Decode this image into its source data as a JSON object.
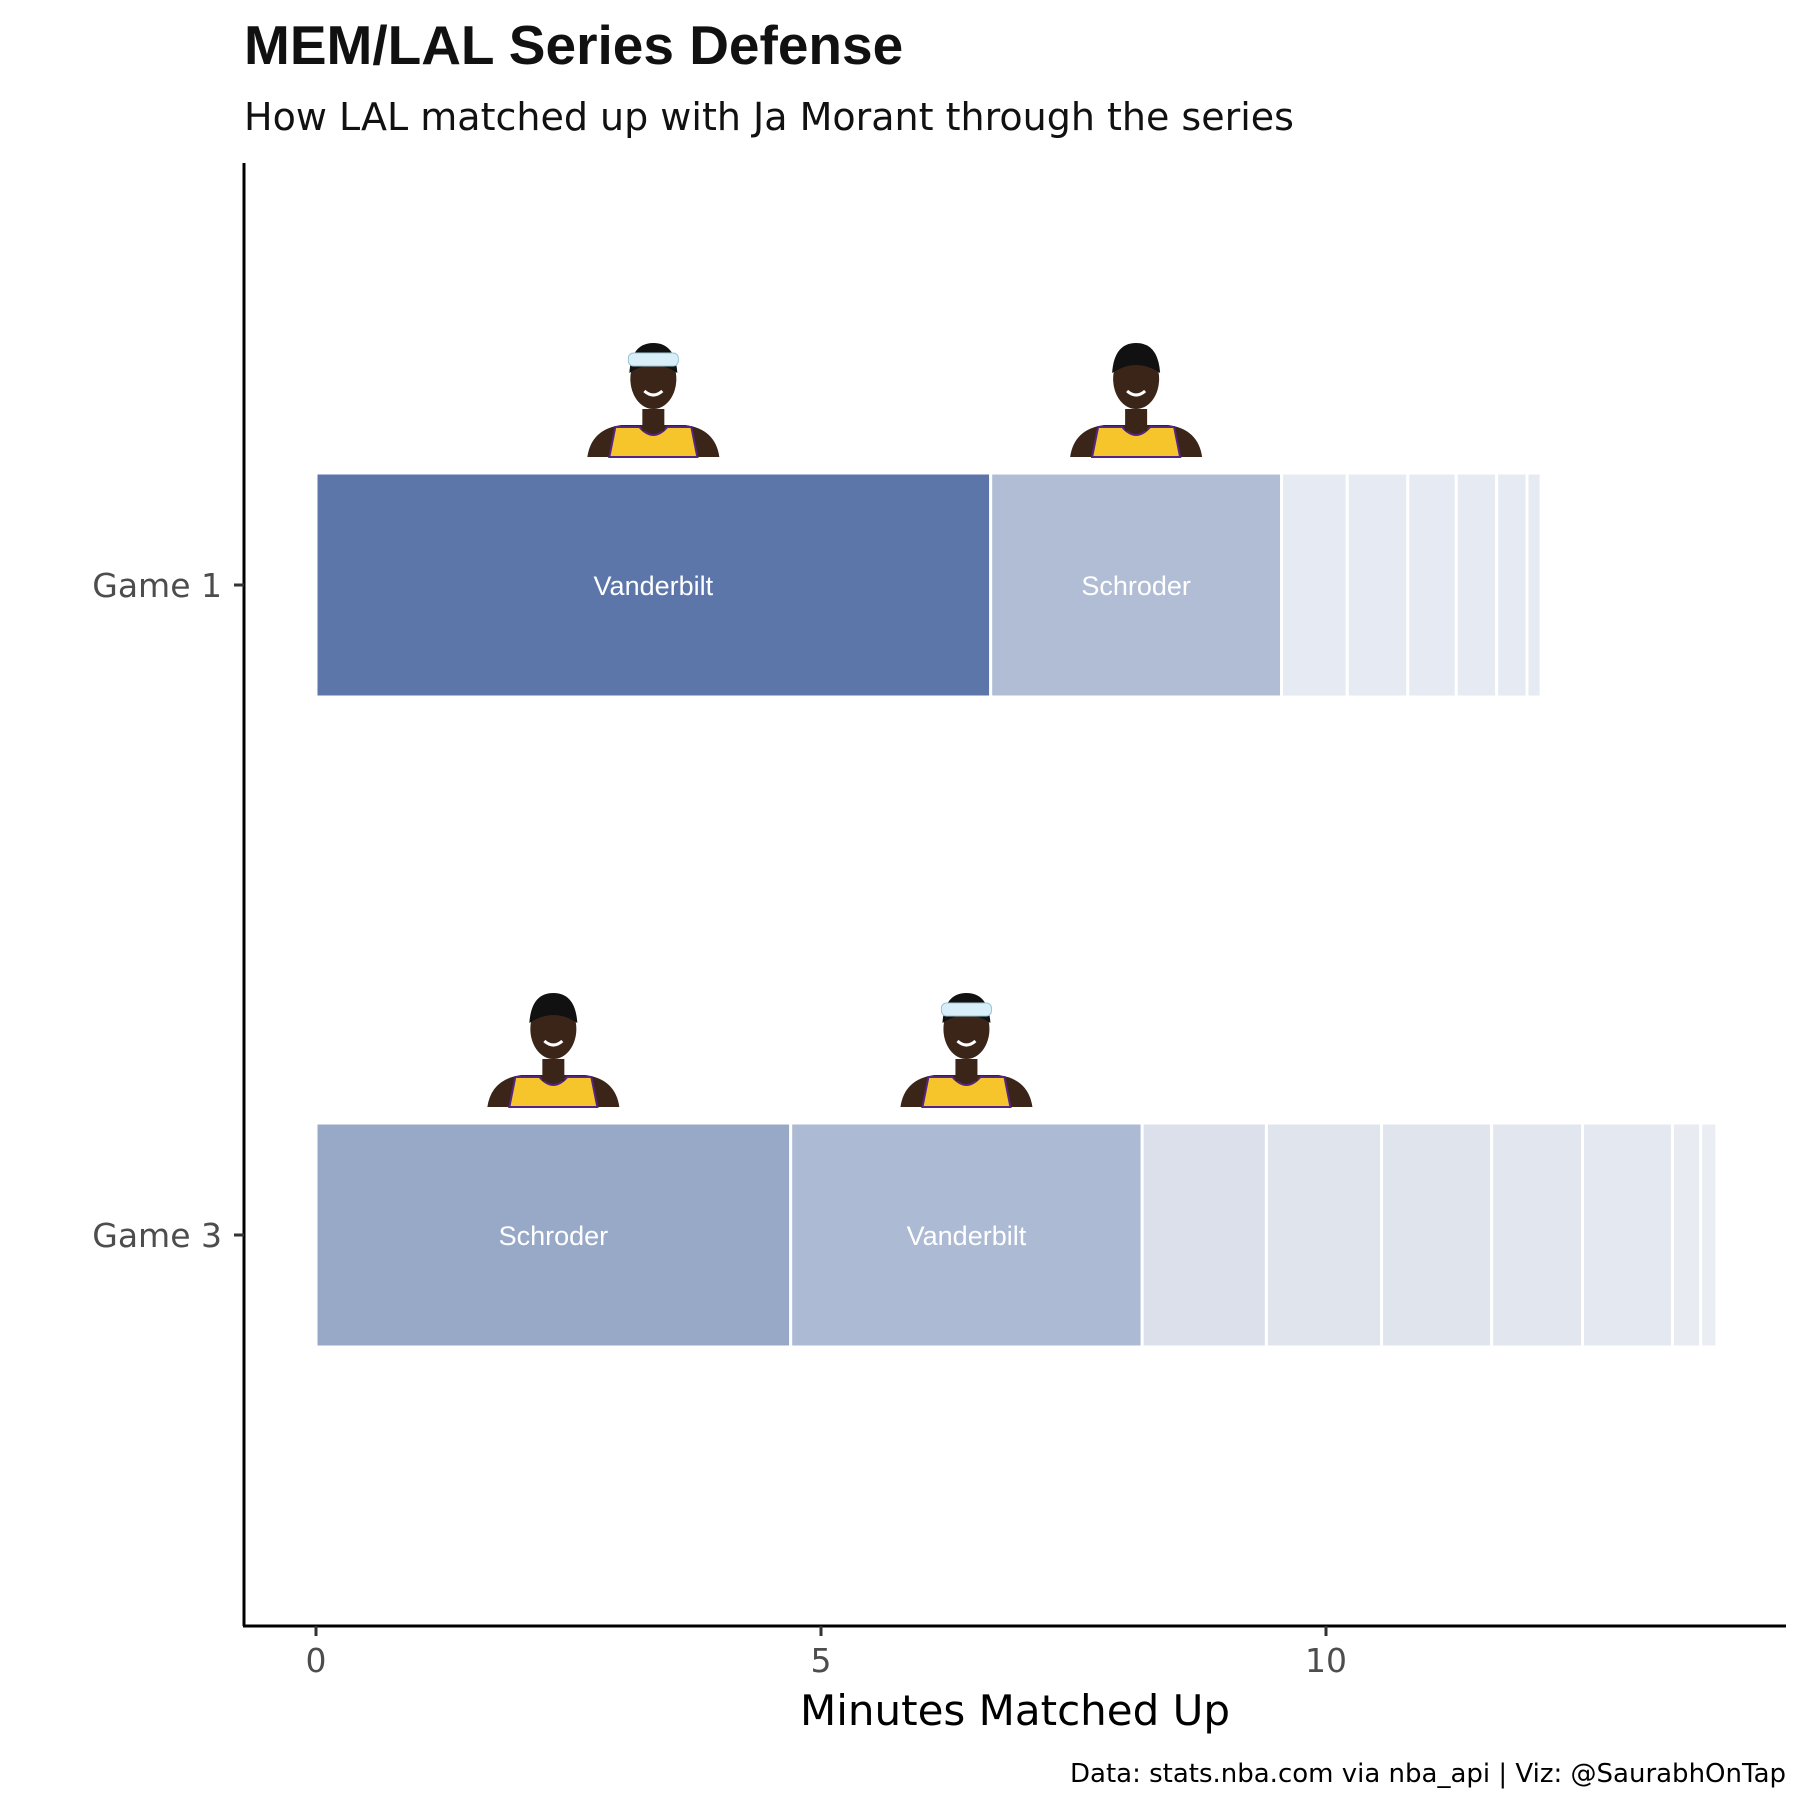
{
  "chart_data": {
    "type": "bar",
    "orientation": "horizontal-stacked",
    "title": "MEM/LAL Series Defense",
    "subtitle": "How LAL matched up with Ja Morant through the series",
    "xlabel": "Minutes Matched Up",
    "ylabel": "",
    "caption": "Data: stats.nba.com via nba_api | Viz: @SaurabhOnTap",
    "xlim": [
      -0.7,
      14.6
    ],
    "xticks": [
      0,
      5,
      10
    ],
    "grid": false,
    "legend": "none",
    "categories": [
      "Game 1",
      "Game 3"
    ],
    "games": [
      {
        "name": "Game 1",
        "segments": [
          {
            "label": "Vanderbilt",
            "value": 6.68,
            "color": "#5d76a9"
          },
          {
            "label": "Schroder",
            "value": 2.88,
            "color": "#b1bdd5"
          },
          {
            "label": "",
            "value": 0.65,
            "color": "#e6eaf2"
          },
          {
            "label": "",
            "value": 0.6,
            "color": "#e6eaf2"
          },
          {
            "label": "",
            "value": 0.48,
            "color": "#e6eaf2"
          },
          {
            "label": "",
            "value": 0.4,
            "color": "#e6eaf2"
          },
          {
            "label": "",
            "value": 0.3,
            "color": "#e6eaf2"
          },
          {
            "label": "",
            "value": 0.14,
            "color": "#e6eaf2"
          }
        ]
      },
      {
        "name": "Game 3",
        "segments": [
          {
            "label": "Schroder",
            "value": 4.7,
            "color": "#98a9c8"
          },
          {
            "label": "Vanderbilt",
            "value": 3.48,
            "color": "#acbad4"
          },
          {
            "label": "",
            "value": 1.23,
            "color": "#dbe0eb"
          },
          {
            "label": "",
            "value": 1.14,
            "color": "#dfe4ed"
          },
          {
            "label": "",
            "value": 1.09,
            "color": "#dfe4ed"
          },
          {
            "label": "",
            "value": 0.9,
            "color": "#e2e6ef"
          },
          {
            "label": "",
            "value": 0.89,
            "color": "#e4e8f0"
          },
          {
            "label": "",
            "value": 0.28,
            "color": "#e8ebf2"
          },
          {
            "label": "",
            "value": 0.16,
            "color": "#eaedf3"
          }
        ]
      }
    ]
  },
  "player_images": [
    {
      "game": "Game 1",
      "player": "Vanderbilt",
      "headband": true
    },
    {
      "game": "Game 1",
      "player": "Schroder",
      "headband": false
    },
    {
      "game": "Game 3",
      "player": "Schroder",
      "headband": false
    },
    {
      "game": "Game 3",
      "player": "Vanderbilt",
      "headband": true
    }
  ],
  "colors": {
    "jersey": "#f5c52b",
    "jersey_trim": "#552583",
    "skin": "#3b2418",
    "hair": "#111111",
    "headband": "#d8eef8"
  }
}
